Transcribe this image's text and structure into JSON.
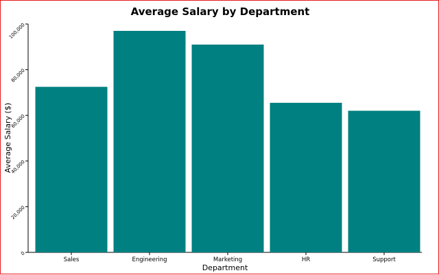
{
  "chart_data": {
    "type": "bar",
    "title": "Average Salary by Department",
    "xlabel": "Department",
    "ylabel": "Average Salary ($)",
    "categories": [
      "Sales",
      "Engineering",
      "Marketing",
      "HR",
      "Support"
    ],
    "values": [
      72500,
      97000,
      91000,
      65500,
      62000
    ],
    "ylim": [
      0,
      100000
    ],
    "yticks": [
      0,
      20000,
      40000,
      60000,
      80000,
      100000
    ],
    "ytick_labels": [
      "0",
      "20,000",
      "40,000",
      "60,000",
      "80,000",
      "100,000"
    ],
    "grid": false,
    "legend": "none",
    "bar_color": "#008080"
  },
  "colors": {
    "frame_border": "#e8181e",
    "background": "#ffffff",
    "bar": "#008080"
  }
}
